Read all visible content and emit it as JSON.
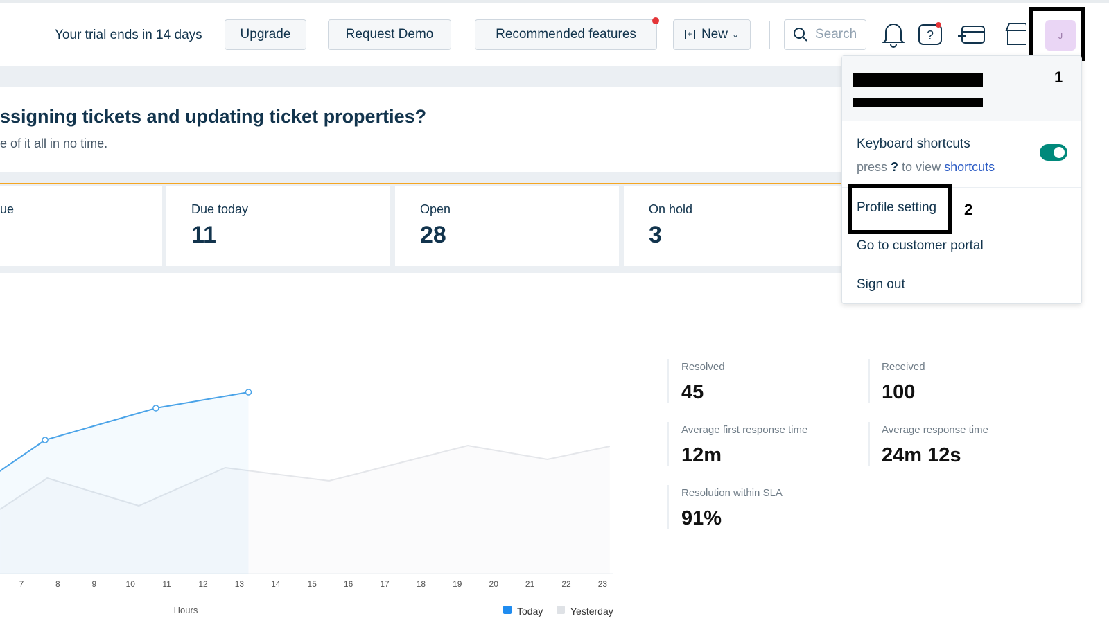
{
  "header": {
    "trial": "Your trial ends in 14 days",
    "upgrade": "Upgrade",
    "request_demo": "Request Demo",
    "recommended": "Recommended features",
    "new": "New",
    "search": "Search",
    "avatar": "J",
    "marker": "1"
  },
  "banner": {
    "title": "ssigning tickets and updating ticket properties?",
    "subtitle": "e of it all in no time."
  },
  "cards": [
    {
      "label": "ue"
    },
    {
      "label": "Due today",
      "value": 11
    },
    {
      "label": "Open",
      "value": 28
    },
    {
      "label": "On hold",
      "value": 3
    }
  ],
  "menu": {
    "keyboard": "Keyboard shortcuts",
    "press": "press",
    "key": "?",
    "to_view": "to view",
    "shortcuts": "shortcuts",
    "profile": "Profile setting",
    "marker": "2",
    "portal": "Go to customer portal",
    "signout": "Sign out"
  },
  "stats": [
    {
      "label": "Resolved",
      "value": 45
    },
    {
      "label": "Received",
      "value": 100
    },
    {
      "label": "Average first response time",
      "value": "12m"
    },
    {
      "label": "Average response time",
      "value": "24m 12s"
    },
    {
      "label": "Resolution within SLA",
      "value": "91%"
    }
  ],
  "chart_data": {
    "type": "line",
    "xlabel": "Hours",
    "xticks": [
      7,
      8,
      9,
      10,
      11,
      12,
      13,
      14,
      15,
      16,
      17,
      18,
      19,
      20,
      21,
      22,
      23
    ],
    "series": [
      {
        "name": "Today",
        "color": "#4aa3e8",
        "x": [
          6.4,
          7.65,
          10.7,
          13.25
        ],
        "values": [
          148,
          193,
          239,
          262
        ]
      },
      {
        "name": "Yesterday",
        "color": "#e4e6ea",
        "x": [
          6.41,
          7.71,
          10.23,
          12.61,
          15.47,
          19.29,
          21.48,
          23.2
        ],
        "values": [
          93,
          138,
          98,
          153,
          134,
          185,
          165,
          184
        ]
      }
    ]
  }
}
